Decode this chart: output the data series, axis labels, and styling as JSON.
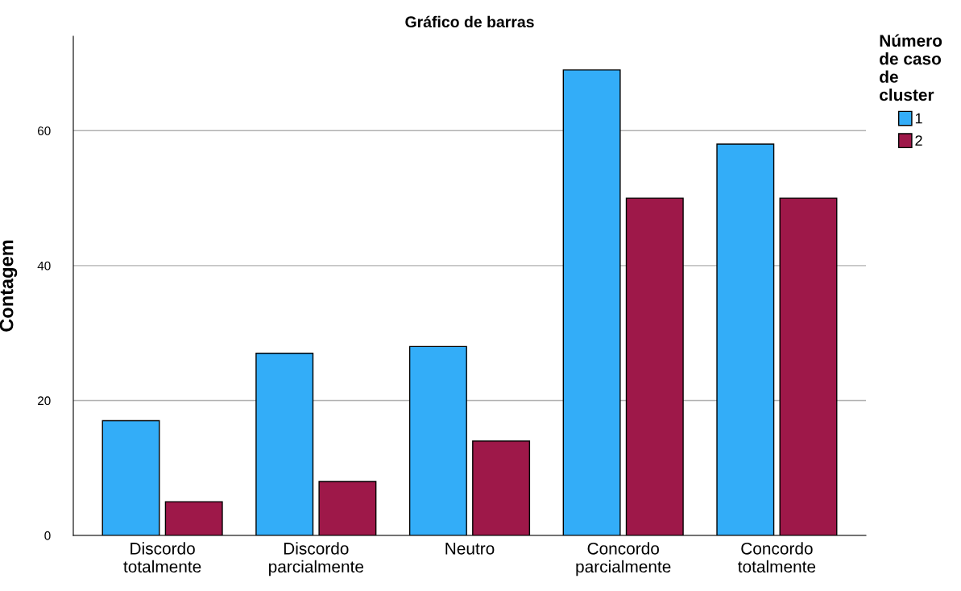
{
  "chart_data": {
    "type": "bar",
    "title": "Gráfico de barras",
    "ylabel": "Contagem",
    "legend_title": "Número\nde caso\nde\ncluster",
    "categories": [
      "Discordo\ntotalmente",
      "Discordo\nparcialmente",
      "Neutro",
      "Concordo\nparcialmente",
      "Concordo\ntotalmente"
    ],
    "series": [
      {
        "name": "1",
        "color": "#33adf8",
        "values": [
          17,
          27,
          28,
          69,
          58
        ]
      },
      {
        "name": "2",
        "color": "#9e1849",
        "values": [
          5,
          8,
          14,
          50,
          50
        ]
      }
    ],
    "ylim": [
      0,
      74
    ],
    "yticks": [
      0,
      20,
      40,
      60
    ],
    "grid": "y",
    "legend": "top right"
  }
}
